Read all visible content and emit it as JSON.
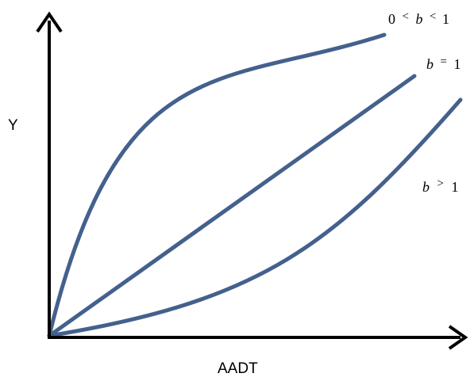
{
  "diagram": {
    "y_axis_label": "Y",
    "x_axis_label": "AADT",
    "curves": [
      {
        "name": "concave-curve",
        "relation": {
          "lower": "0",
          "op1": "<",
          "var": "b",
          "op2": "<",
          "upper": "1"
        }
      },
      {
        "name": "linear-curve",
        "relation": {
          "var": "b",
          "op": "=",
          "value": "1"
        }
      },
      {
        "name": "convex-curve",
        "relation": {
          "var": "b",
          "op": ">",
          "value": "1"
        }
      }
    ],
    "colors": {
      "curve": "#44618D",
      "axis": "#000000"
    }
  }
}
